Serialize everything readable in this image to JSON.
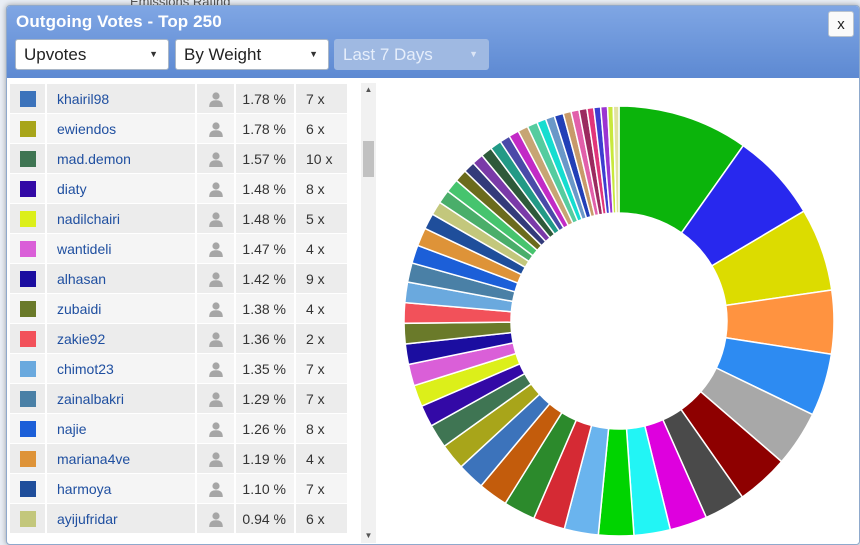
{
  "header": {
    "title": "Outgoing Votes - Top 250",
    "close_label": "x"
  },
  "filters": {
    "type": "Upvotes",
    "sort": "By Weight",
    "period": "Last 7 Days"
  },
  "voters": [
    {
      "color": "#3c73bb",
      "name": "khairil98",
      "pct": "1.78 %",
      "count": "7 x",
      "icon": "user-icon"
    },
    {
      "color": "#a8a51a",
      "name": "ewiendos",
      "pct": "1.78 %",
      "count": "6 x",
      "icon": "user-icon"
    },
    {
      "color": "#3f7553",
      "name": "mad.demon",
      "pct": "1.57 %",
      "count": "10 x",
      "icon": "user-icon"
    },
    {
      "color": "#3309a6",
      "name": "diaty",
      "pct": "1.48 %",
      "count": "8 x",
      "icon": "user-icon"
    },
    {
      "color": "#dcef1a",
      "name": "nadilchairi",
      "pct": "1.48 %",
      "count": "5 x",
      "icon": "user-icon"
    },
    {
      "color": "#da5fd8",
      "name": "wantideli",
      "pct": "1.47 %",
      "count": "4 x",
      "icon": "user-icon"
    },
    {
      "color": "#1b0da0",
      "name": "alhasan",
      "pct": "1.42 %",
      "count": "9 x",
      "icon": "user-icon"
    },
    {
      "color": "#6a7a2a",
      "name": "zubaidi",
      "pct": "1.38 %",
      "count": "4 x",
      "icon": "user-icon"
    },
    {
      "color": "#f2515a",
      "name": "zakie92",
      "pct": "1.36 %",
      "count": "2 x",
      "icon": "user-icon"
    },
    {
      "color": "#6aa9de",
      "name": "chimot23",
      "pct": "1.35 %",
      "count": "7 x",
      "icon": "user-icon"
    },
    {
      "color": "#4a80a6",
      "name": "zainalbakri",
      "pct": "1.29 %",
      "count": "7 x",
      "icon": "user-icon"
    },
    {
      "color": "#1c5fd8",
      "name": "najie",
      "pct": "1.26 %",
      "count": "8 x",
      "icon": "user-icon"
    },
    {
      "color": "#de9338",
      "name": "mariana4ve",
      "pct": "1.19 %",
      "count": "4 x",
      "icon": "user-icon"
    },
    {
      "color": "#1f4e9b",
      "name": "harmoya",
      "pct": "1.10 %",
      "count": "7 x",
      "icon": "user-icon"
    },
    {
      "color": "#c3c77c",
      "name": "ayijufridar",
      "pct": "0.94 %",
      "count": "6 x",
      "icon": "user-icon"
    }
  ],
  "chart_data": {
    "type": "pie",
    "style": "donut",
    "legend": "none",
    "slices": [
      {
        "value": 11.5,
        "color": "#0bb40b"
      },
      {
        "value": 7.8,
        "color": "#2828ee"
      },
      {
        "value": 7.3,
        "color": "#dcdc00"
      },
      {
        "value": 5.6,
        "color": "#ff9340"
      },
      {
        "value": 5.5,
        "color": "#2d8bf2"
      },
      {
        "value": 4.9,
        "color": "#a8a8a8"
      },
      {
        "value": 4.6,
        "color": "#8e0000"
      },
      {
        "value": 3.6,
        "color": "#4a4a4a"
      },
      {
        "value": 3.3,
        "color": "#de00de"
      },
      {
        "value": 3.2,
        "color": "#22f5f5"
      },
      {
        "value": 3.1,
        "color": "#00d400"
      },
      {
        "value": 3.0,
        "color": "#6ab4ee"
      },
      {
        "value": 2.8,
        "color": "#d52a34"
      },
      {
        "value": 2.8,
        "color": "#2c8a2c"
      },
      {
        "value": 2.6,
        "color": "#c35c0c"
      },
      {
        "value": 2.4,
        "color": "#3c73bb"
      },
      {
        "value": 2.3,
        "color": "#a8a51a"
      },
      {
        "value": 2.1,
        "color": "#3f7553"
      },
      {
        "value": 1.9,
        "color": "#3309a6"
      },
      {
        "value": 1.9,
        "color": "#dcef1a"
      },
      {
        "value": 1.9,
        "color": "#da5fd8"
      },
      {
        "value": 1.8,
        "color": "#1b0da0"
      },
      {
        "value": 1.8,
        "color": "#6a7a2a"
      },
      {
        "value": 1.8,
        "color": "#f2515a"
      },
      {
        "value": 1.8,
        "color": "#6aa9de"
      },
      {
        "value": 1.7,
        "color": "#4a80a6"
      },
      {
        "value": 1.6,
        "color": "#1c5fd8"
      },
      {
        "value": 1.6,
        "color": "#de9338"
      },
      {
        "value": 1.4,
        "color": "#1f4e9b"
      },
      {
        "value": 1.2,
        "color": "#c3c77c"
      },
      {
        "value": 1.2,
        "color": "#4aae6a"
      },
      {
        "value": 1.2,
        "color": "#46c46e"
      },
      {
        "value": 1.1,
        "color": "#6b6b1c"
      },
      {
        "value": 1.0,
        "color": "#333b7a"
      },
      {
        "value": 1.0,
        "color": "#7a3aa8"
      },
      {
        "value": 1.0,
        "color": "#2e5a3a"
      },
      {
        "value": 1.0,
        "color": "#229a86"
      },
      {
        "value": 0.9,
        "color": "#4a4aa8"
      },
      {
        "value": 0.9,
        "color": "#c22ac6"
      },
      {
        "value": 0.9,
        "color": "#c7a574"
      },
      {
        "value": 0.9,
        "color": "#55cc9f"
      },
      {
        "value": 0.8,
        "color": "#16ddd0"
      },
      {
        "value": 0.8,
        "color": "#6a98c8"
      },
      {
        "value": 0.8,
        "color": "#223fb7"
      },
      {
        "value": 0.7,
        "color": "#c89a6a"
      },
      {
        "value": 0.7,
        "color": "#e25faa"
      },
      {
        "value": 0.7,
        "color": "#9b2a5f"
      },
      {
        "value": 0.6,
        "color": "#e0357a"
      },
      {
        "value": 0.6,
        "color": "#3d3dd0"
      },
      {
        "value": 0.6,
        "color": "#9b34d2"
      },
      {
        "value": 0.5,
        "color": "#c8e83c"
      },
      {
        "value": 0.5,
        "color": "#e2e2a0"
      }
    ]
  }
}
